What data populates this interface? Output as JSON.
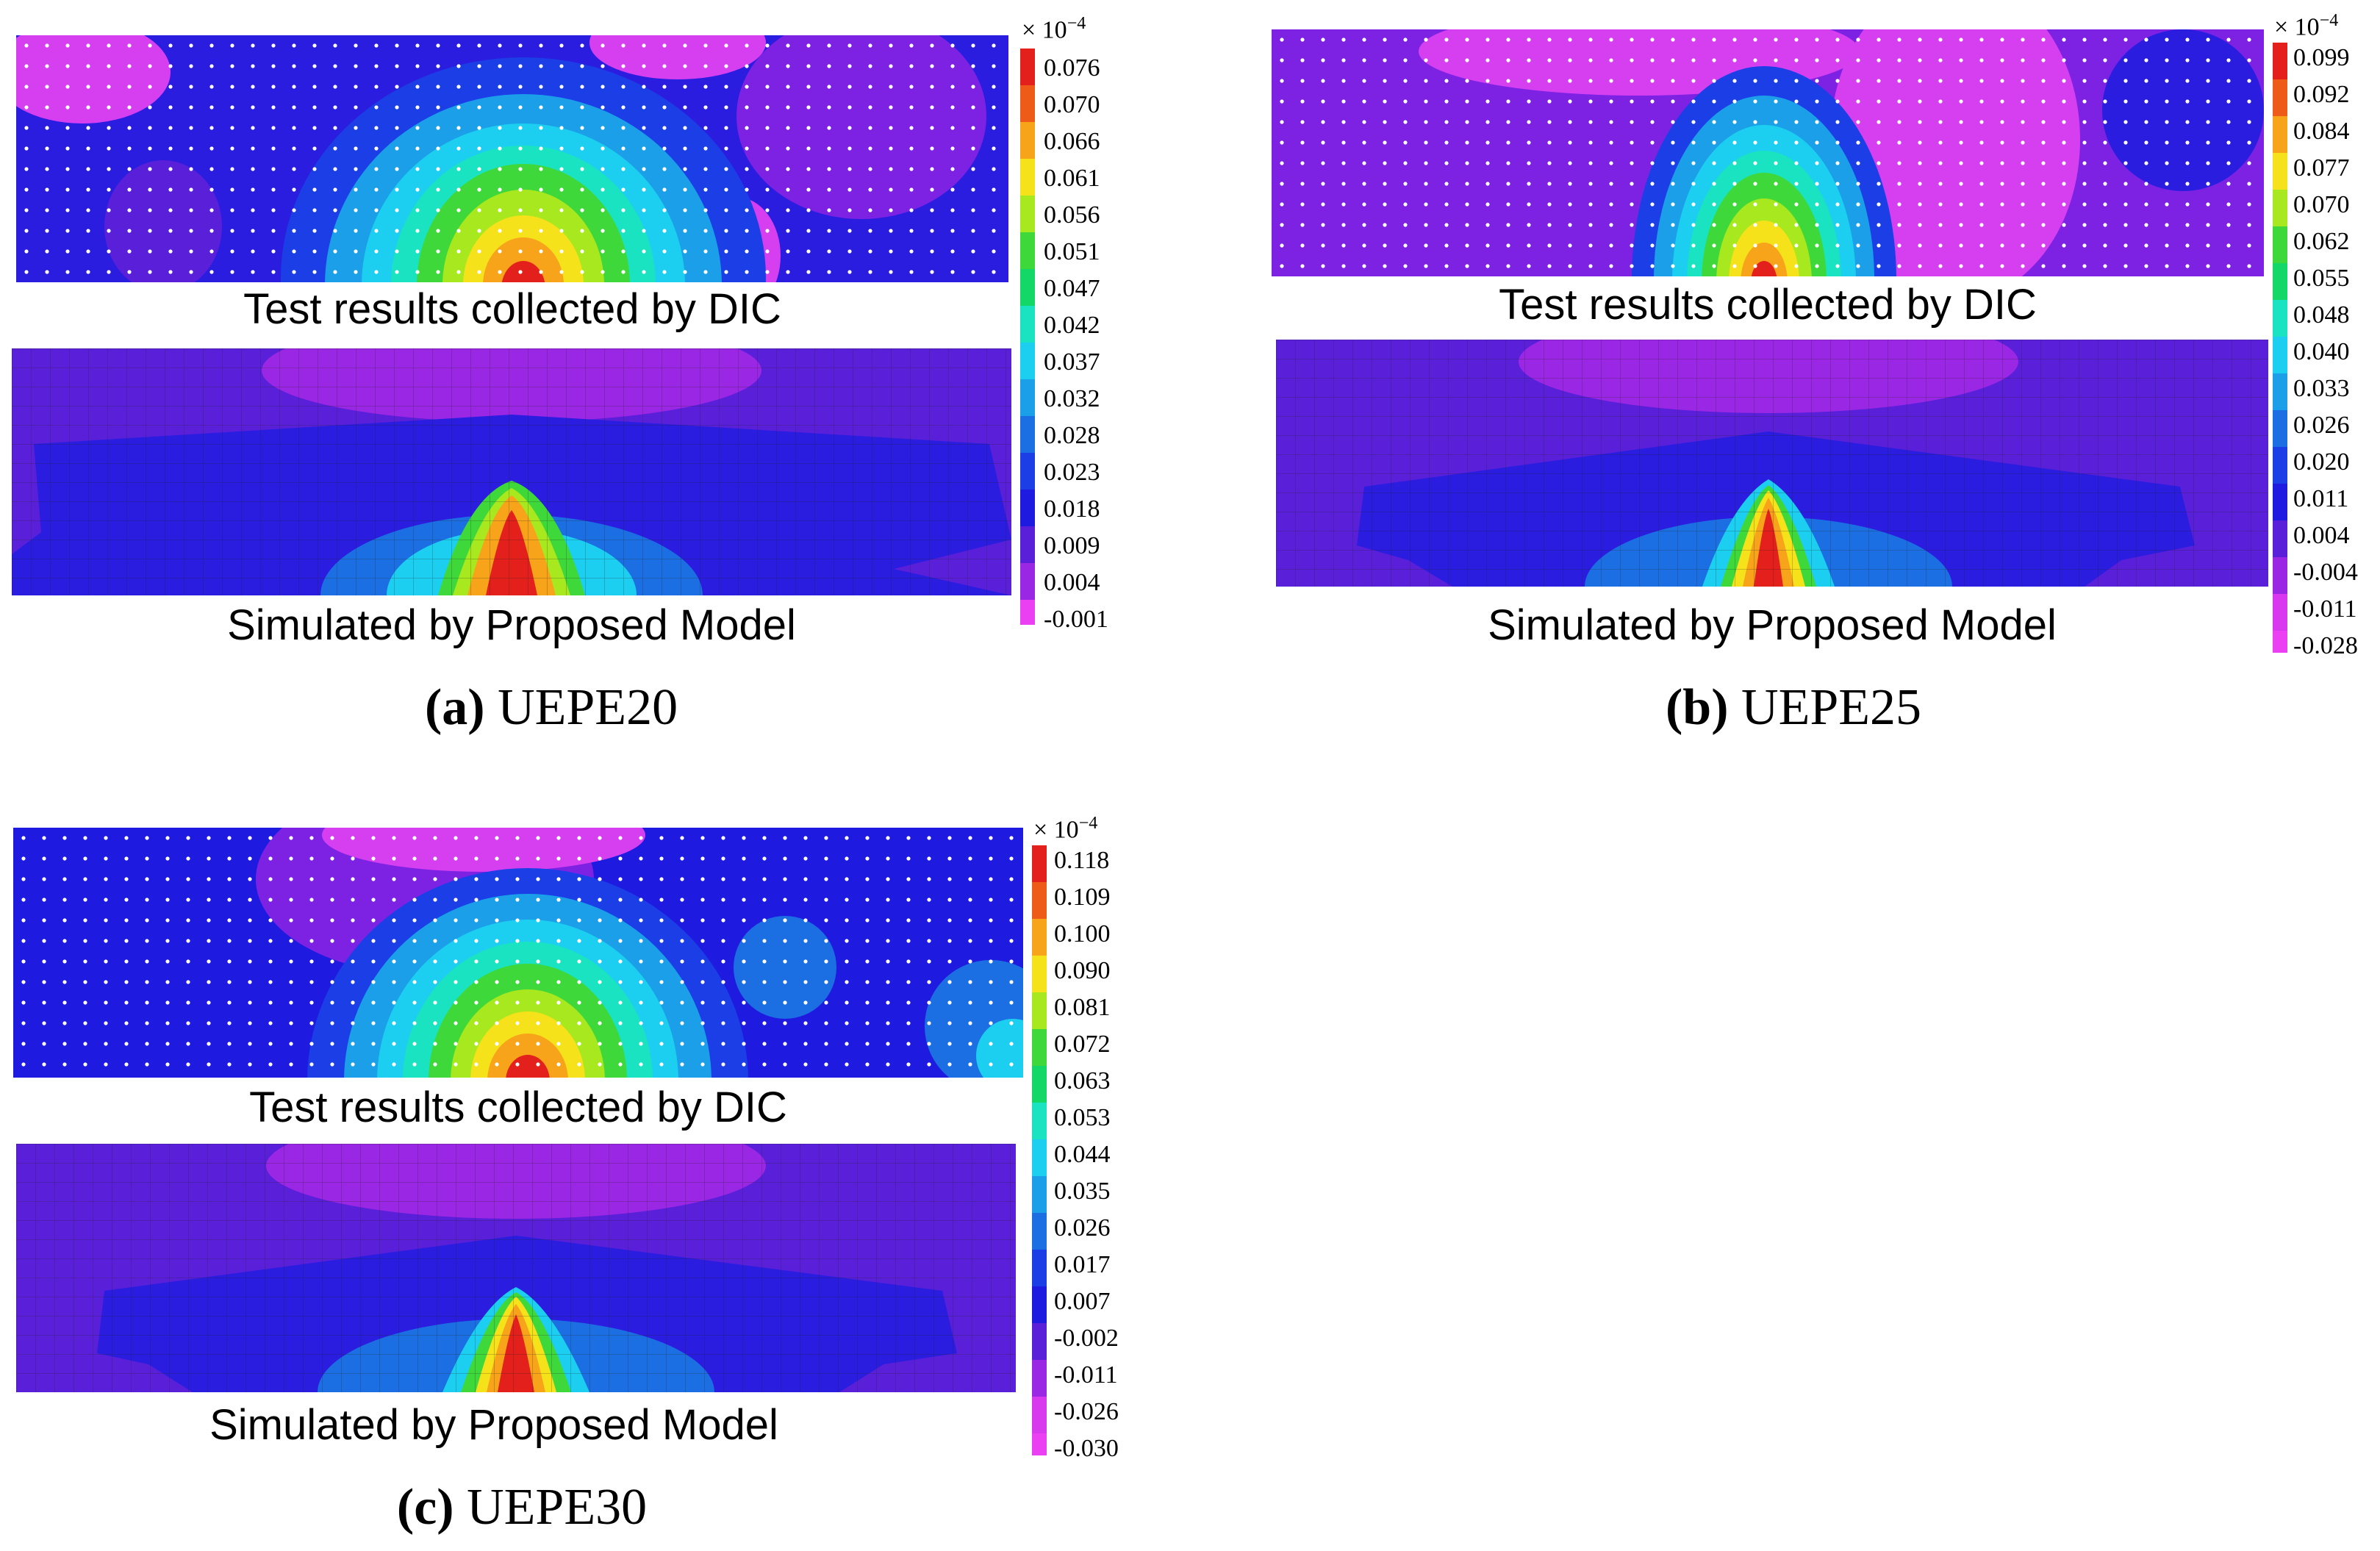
{
  "exponent_prefix": "× 10",
  "exponent_power": "−4",
  "panel_a": {
    "letter": "(a)",
    "specimen": "UEPE20",
    "dic_caption": "Test results collected by DIC",
    "model_caption": "Simulated by Proposed Model",
    "colorbar": [
      "0.076",
      "0.070",
      "0.066",
      "0.061",
      "0.056",
      "0.051",
      "0.047",
      "0.042",
      "0.037",
      "0.032",
      "0.028",
      "0.023",
      "0.018",
      "0.009",
      "0.004",
      "-0.001"
    ]
  },
  "panel_b": {
    "letter": "(b)",
    "specimen": "UEPE25",
    "dic_caption": "Test results collected by DIC",
    "model_caption": "Simulated by Proposed Model",
    "colorbar": [
      "0.099",
      "0.092",
      "0.084",
      "0.077",
      "0.070",
      "0.062",
      "0.055",
      "0.048",
      "0.040",
      "0.033",
      "0.026",
      "0.020",
      "0.011",
      "0.004",
      "-0.004",
      "-0.011",
      "-0.028"
    ]
  },
  "panel_c": {
    "letter": "(c)",
    "specimen": "UEPE30",
    "dic_caption": "Test results collected by DIC",
    "model_caption": "Simulated by Proposed Model",
    "colorbar": [
      "0.118",
      "0.109",
      "0.100",
      "0.090",
      "0.081",
      "0.072",
      "0.063",
      "0.053",
      "0.044",
      "0.035",
      "0.026",
      "0.017",
      "0.007",
      "-0.002",
      "-0.011",
      "-0.026",
      "-0.030"
    ]
  },
  "palette": [
    "#e3201b",
    "#ee5a18",
    "#f7a41b",
    "#f6e21a",
    "#a8e81e",
    "#3fd83a",
    "#13d868",
    "#19e3c0",
    "#1ccff1",
    "#1a9fe8",
    "#1c6fe2",
    "#1b3ee6",
    "#1e1ae0",
    "#5a1fd9",
    "#9a27e3",
    "#d838ee",
    "#ea3ff2"
  ]
}
